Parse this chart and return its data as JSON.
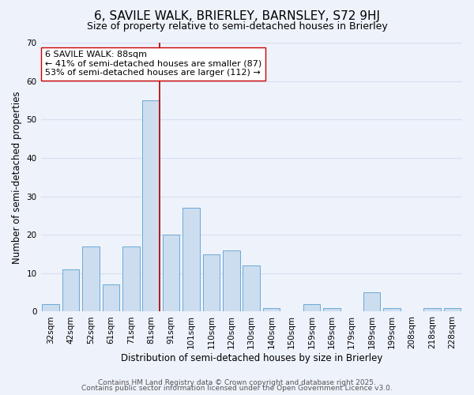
{
  "title": "6, SAVILE WALK, BRIERLEY, BARNSLEY, S72 9HJ",
  "subtitle": "Size of property relative to semi-detached houses in Brierley",
  "xlabel": "Distribution of semi-detached houses by size in Brierley",
  "ylabel": "Number of semi-detached properties",
  "bar_labels": [
    "32sqm",
    "42sqm",
    "52sqm",
    "61sqm",
    "71sqm",
    "81sqm",
    "91sqm",
    "101sqm",
    "110sqm",
    "120sqm",
    "130sqm",
    "140sqm",
    "150sqm",
    "159sqm",
    "169sqm",
    "179sqm",
    "189sqm",
    "199sqm",
    "208sqm",
    "218sqm",
    "228sqm"
  ],
  "bar_values": [
    2,
    11,
    17,
    7,
    17,
    55,
    20,
    27,
    15,
    16,
    12,
    1,
    0,
    2,
    1,
    0,
    5,
    1,
    0,
    1,
    1
  ],
  "bar_color": "#ccddf0",
  "bar_edge_color": "#6aaad4",
  "background_color": "#eef2fb",
  "grid_color": "#d8dff0",
  "annotation_line1": "6 SAVILE WALK: 88sqm",
  "annotation_line2": "← 41% of semi-detached houses are smaller (87)",
  "annotation_line3": "53% of semi-detached houses are larger (112) →",
  "vline_color": "#aa0000",
  "vline_x": 5.42,
  "footer1": "Contains HM Land Registry data © Crown copyright and database right 2025.",
  "footer2": "Contains public sector information licensed under the Open Government Licence v3.0.",
  "ylim": [
    0,
    70
  ],
  "title_fontsize": 11,
  "subtitle_fontsize": 9,
  "axis_label_fontsize": 8.5,
  "tick_fontsize": 7.5,
  "annotation_fontsize": 8,
  "footer_fontsize": 6.5
}
